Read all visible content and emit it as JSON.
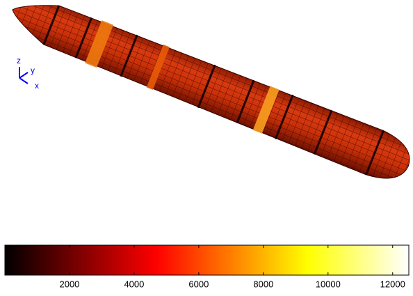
{
  "axes_triad": {
    "labels": [
      "z",
      "y",
      "x"
    ]
  },
  "colorbar": {
    "clim": [
      0,
      12500
    ],
    "ticks": [
      2000,
      4000,
      6000,
      8000,
      10000,
      12000
    ]
  }
}
